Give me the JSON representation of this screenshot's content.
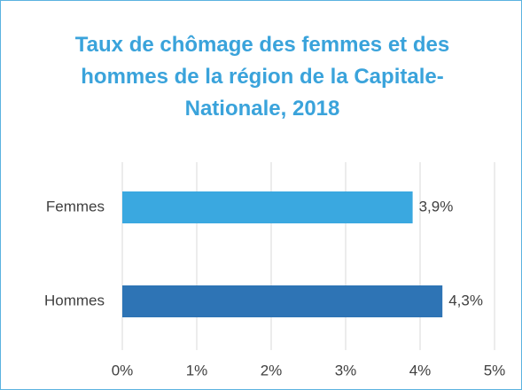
{
  "chart_data": {
    "type": "hbar",
    "title": "Taux de chômage des femmes et des hommes de la région de la Capitale-Nationale, 2018",
    "categories": [
      "Femmes",
      "Hommes"
    ],
    "values": [
      3.9,
      4.3
    ],
    "value_labels": [
      "3,9%",
      "4,3%"
    ],
    "colors": [
      "#3aa8e0",
      "#2e74b5"
    ],
    "xlim": [
      0,
      5
    ],
    "xticks": [
      {
        "value": 0,
        "label": "0%"
      },
      {
        "value": 1,
        "label": "1%"
      },
      {
        "value": 2,
        "label": "2%"
      },
      {
        "value": 3,
        "label": "3%"
      },
      {
        "value": 4,
        "label": "4%"
      },
      {
        "value": 5,
        "label": "5%"
      }
    ],
    "grid": true
  }
}
